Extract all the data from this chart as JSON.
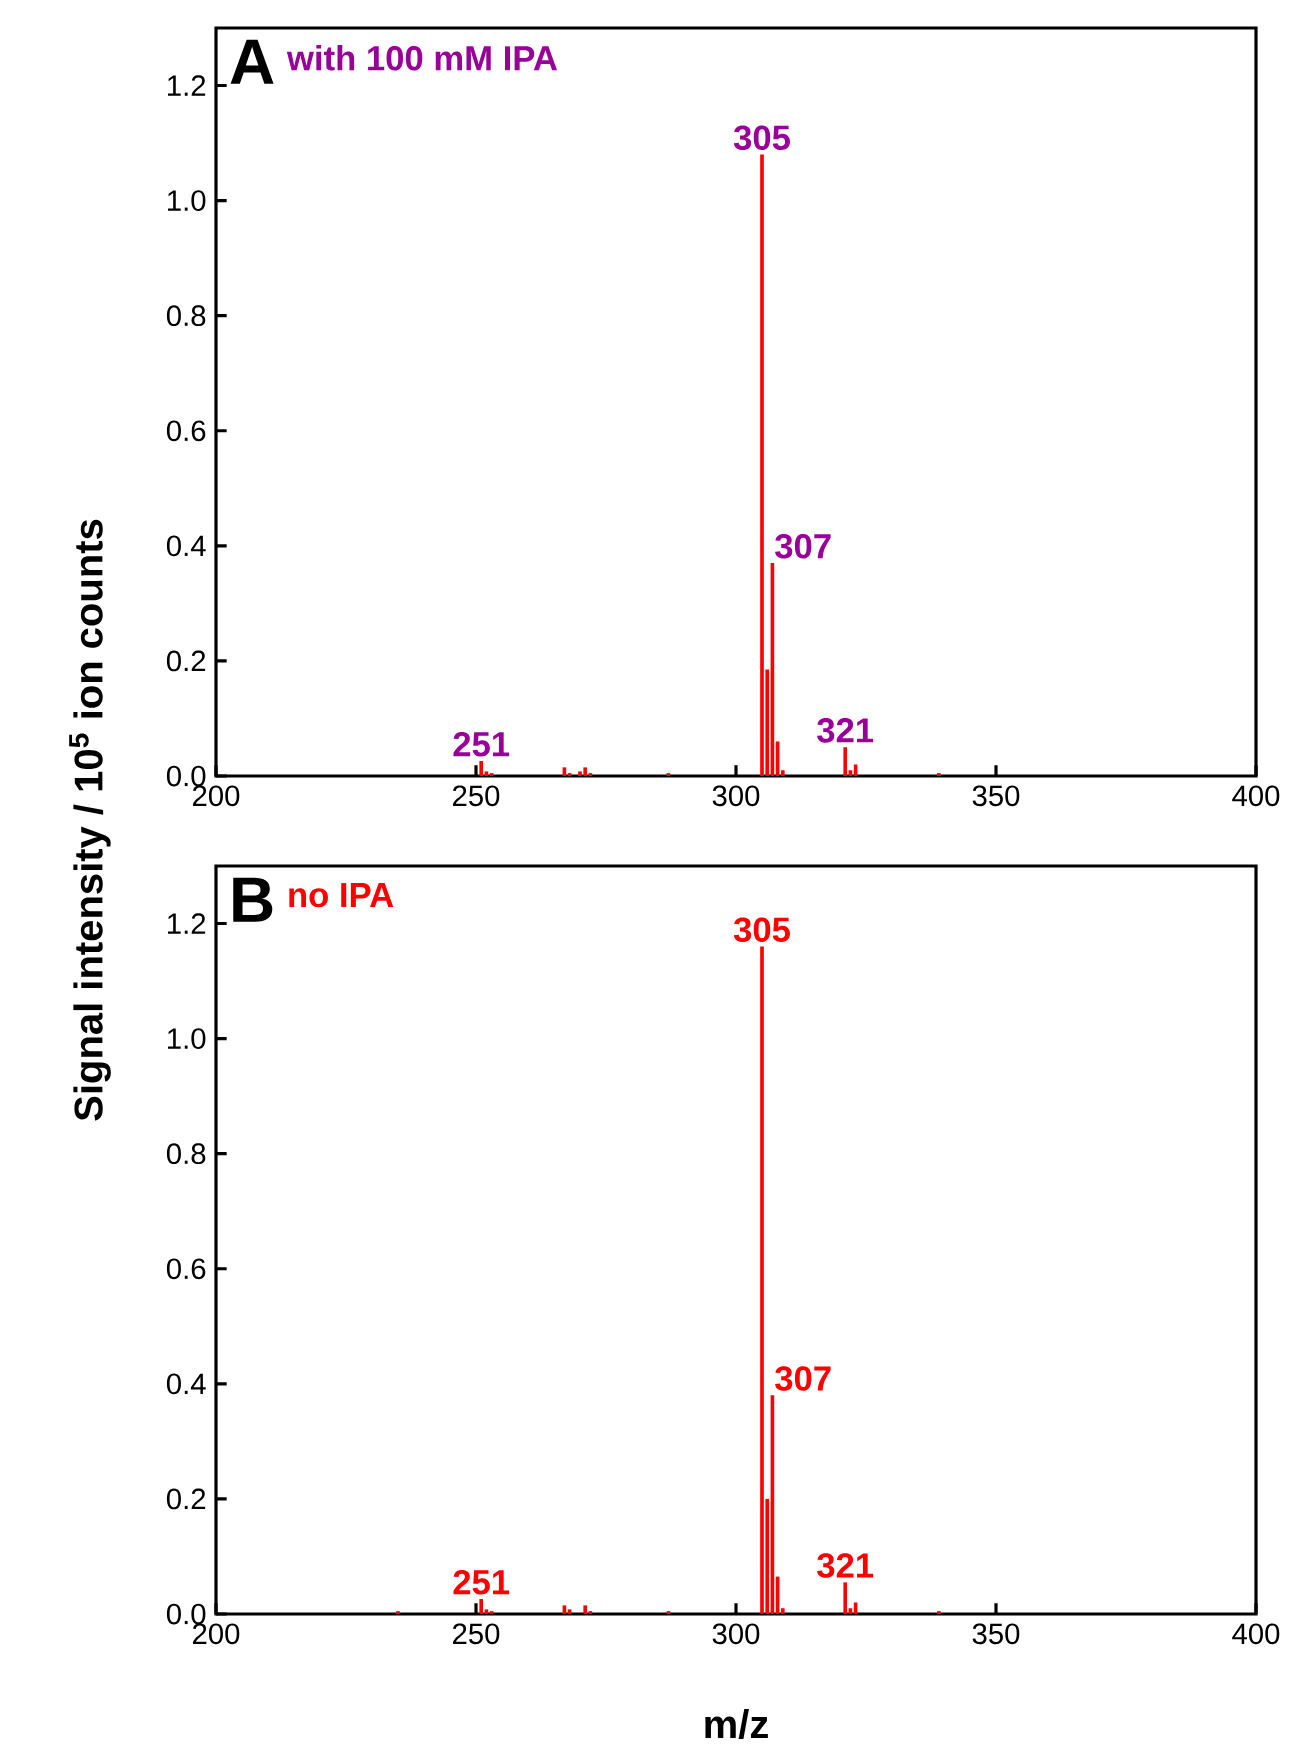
{
  "chart_data": [
    {
      "type": "bar",
      "title": "A",
      "subtitle": "with 100 mM IPA",
      "ylabel": "Signal intensity / 10$^{5}$ ion counts",
      "color": "#ff0000",
      "x": [
        251,
        252,
        253,
        267,
        268,
        270,
        271,
        272,
        287,
        305,
        306,
        307,
        308,
        309,
        321,
        322,
        323,
        339
      ],
      "values": [
        0.026,
        0.008,
        0.005,
        0.015,
        0.005,
        0.008,
        0.015,
        0.005,
        0.005,
        1.08,
        0.185,
        0.37,
        0.06,
        0.01,
        0.05,
        0.01,
        0.02,
        0.005
      ],
      "xlim": [
        200,
        400
      ],
      "xticks": [
        200,
        250,
        300,
        350,
        400
      ],
      "ylim": [
        0,
        1.3
      ],
      "yticks": [
        {
          "value": 0,
          "label": "0.0"
        },
        {
          "value": 0.2,
          "label": "0.2"
        },
        {
          "value": 0.4,
          "label": "0.4"
        },
        {
          "value": 0.6,
          "label": "0.6"
        },
        {
          "value": 0.8,
          "label": "0.8"
        },
        {
          "value": 1.0,
          "label": "1.0"
        },
        {
          "value": 1.2,
          "label": "1.2"
        }
      ],
      "annotations": [
        {
          "text": "251",
          "x": 251,
          "y": 0.026
        },
        {
          "text": "305",
          "x": 305,
          "y": 1.08
        },
        {
          "text": "307",
          "x": 307,
          "y": 0.37
        },
        {
          "text": "321",
          "x": 321,
          "y": 0.05
        }
      ]
    },
    {
      "type": "bar",
      "title": "B",
      "subtitle": "no IPA",
      "xlabel": "m/z",
      "color": "#ff0000",
      "x": [
        235,
        251,
        252,
        253,
        267,
        268,
        271,
        272,
        287,
        305,
        306,
        307,
        308,
        309,
        321,
        322,
        323,
        339
      ],
      "values": [
        0.005,
        0.026,
        0.008,
        0.005,
        0.015,
        0.008,
        0.015,
        0.005,
        0.005,
        1.16,
        0.2,
        0.38,
        0.065,
        0.01,
        0.055,
        0.01,
        0.02,
        0.005
      ],
      "xlim": [
        200,
        400
      ],
      "xticks": [
        200,
        250,
        300,
        350,
        400
      ],
      "ylim": [
        0,
        1.3
      ],
      "yticks": [
        {
          "value": 0,
          "label": "0.0"
        },
        {
          "value": 0.2,
          "label": "0.2"
        },
        {
          "value": 0.4,
          "label": "0.4"
        },
        {
          "value": 0.6,
          "label": "0.6"
        },
        {
          "value": 0.8,
          "label": "0.8"
        },
        {
          "value": 1.0,
          "label": "1.0"
        },
        {
          "value": 1.2,
          "label": "1.2"
        }
      ],
      "annotations": [
        {
          "text": "251",
          "x": 251,
          "y": 0.026
        },
        {
          "text": "305",
          "x": 305,
          "y": 1.16
        },
        {
          "text": "307",
          "x": 307,
          "y": 0.38
        },
        {
          "text": "321",
          "x": 321,
          "y": 0.055
        }
      ]
    }
  ]
}
